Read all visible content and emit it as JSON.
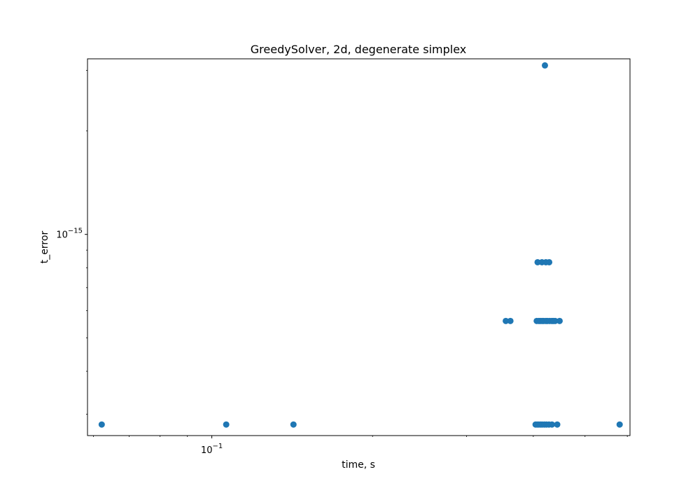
{
  "chart_data": {
    "type": "scatter",
    "title": "GreedySolver, 2d, degenerate simplex",
    "xlabel": "time, s",
    "ylabel": "t_error",
    "xscale": "log",
    "yscale": "log",
    "xlim": [
      0.0585,
      0.607
    ],
    "ylim": [
      2.6e-16,
      3.24e-15
    ],
    "grid": false,
    "legend": "none",
    "x_major_ticks": [
      {
        "value": 0.1,
        "base": "10",
        "exp": "−1"
      }
    ],
    "y_major_ticks": [
      {
        "value": 1e-15,
        "base": "10",
        "exp": "−15"
      }
    ],
    "x_minor_ticks": [
      0.06,
      0.07,
      0.08,
      0.09,
      0.2,
      0.3,
      0.4,
      0.5,
      0.6
    ],
    "y_minor_ticks": [
      3e-16,
      4e-16,
      5e-16,
      6e-16,
      7e-16,
      8e-16,
      9e-16,
      2e-15,
      3e-15
    ],
    "marker_color": "#1f77b4",
    "series": [
      {
        "x": [
          0.0622,
          0.1064,
          0.1422,
          0.404,
          0.40676,
          0.4096,
          0.4127,
          0.4155,
          0.4195,
          0.4232,
          0.4279,
          0.4335,
          0.4435,
          0.5805,
          0.3553,
          0.3624,
          0.406,
          0.4098,
          0.4124,
          0.4156,
          0.4184,
          0.4224,
          0.4251,
          0.4292,
          0.4333,
          0.4361,
          0.4395,
          0.4481,
          0.4075,
          0.4152,
          0.4223,
          0.4284,
          0.4206
        ],
        "y": [
          2.8e-16,
          2.8e-16,
          2.8e-16,
          2.8e-16,
          2.8e-16,
          2.8e-16,
          2.8e-16,
          2.8e-16,
          2.8e-16,
          2.8e-16,
          2.8e-16,
          2.8e-16,
          2.8e-16,
          2.8e-16,
          5.6e-16,
          5.6e-16,
          5.6e-16,
          5.6e-16,
          5.6e-16,
          5.6e-16,
          5.6e-16,
          5.6e-16,
          5.6e-16,
          5.6e-16,
          5.6e-16,
          5.6e-16,
          5.6e-16,
          5.6e-16,
          8.3e-16,
          8.3e-16,
          8.3e-16,
          8.3e-16,
          3.1e-15
        ]
      }
    ]
  }
}
